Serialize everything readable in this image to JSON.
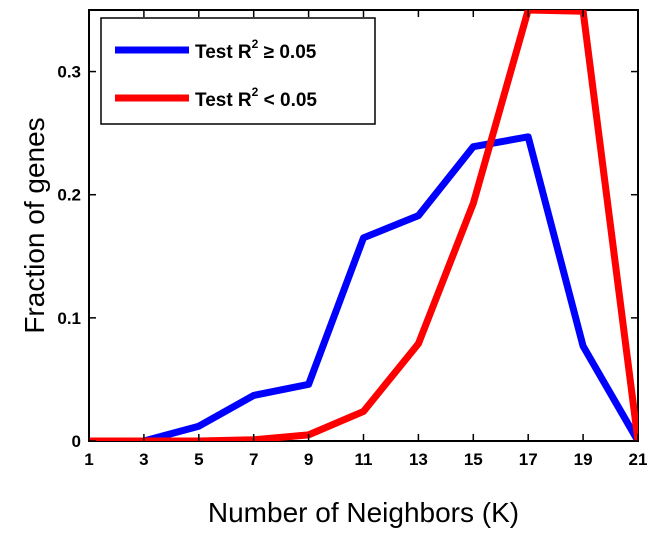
{
  "chart_data": {
    "type": "line",
    "xlabel": "Number of Neighbors (K)",
    "ylabel": "Fraction of genes",
    "xlim": [
      1,
      21
    ],
    "ylim": [
      0,
      0.35
    ],
    "xticks": [
      "1",
      "3",
      "5",
      "7",
      "9",
      "11",
      "13",
      "15",
      "17",
      "19",
      "21"
    ],
    "yticks": [
      "0",
      "0.1",
      "0.2",
      "0.3"
    ],
    "grid": false,
    "legend_position": "top-left",
    "x": [
      1,
      3,
      5,
      7,
      9,
      11,
      13,
      15,
      17,
      19,
      21
    ],
    "series": [
      {
        "name_parts": [
          "Test R",
          "2",
          " ≥ 0.05"
        ],
        "color": "#0000ff",
        "values": [
          0.0,
          0.0,
          0.012,
          0.037,
          0.046,
          0.165,
          0.183,
          0.239,
          0.247,
          0.077,
          0.0
        ]
      },
      {
        "name_parts": [
          "Test R",
          "2",
          " < 0.05"
        ],
        "color": "#ff0000",
        "values": [
          0.0,
          0.0,
          0.0,
          0.001,
          0.005,
          0.024,
          0.079,
          0.193,
          0.35,
          0.349,
          0.0
        ]
      }
    ]
  }
}
